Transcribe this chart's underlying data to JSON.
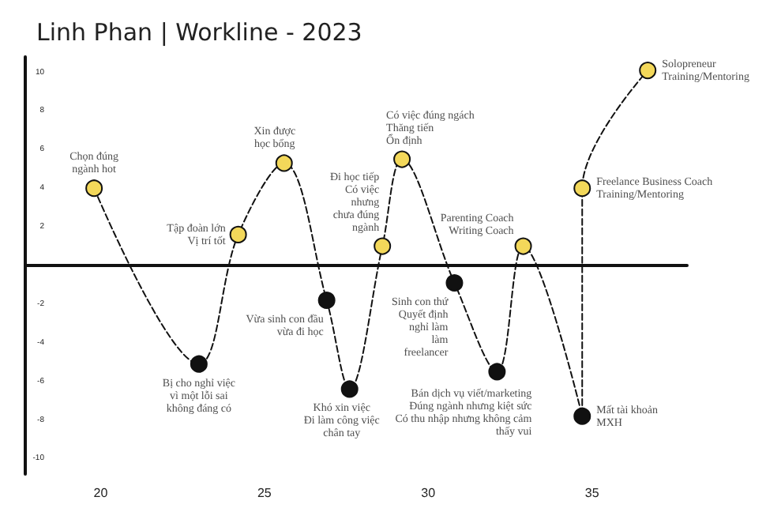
{
  "chart_data": {
    "type": "line",
    "title": "Linh Phan | Workline - 2023",
    "x": [
      19.8,
      23.0,
      24.2,
      25.6,
      26.9,
      27.6,
      28.6,
      29.2,
      30.8,
      32.1,
      32.9,
      34.7,
      34.7,
      36.7
    ],
    "values": [
      4,
      -5.1,
      1.6,
      5.3,
      -1.8,
      -6.4,
      1.0,
      5.5,
      -0.9,
      -5.5,
      1.0,
      -7.8,
      4.0,
      10.1
    ],
    "color": "#111111",
    "colors": [
      "#f3d85a",
      "#111111",
      "#f3d85a",
      "#f3d85a",
      "#111111",
      "#111111",
      "#f3d85a",
      "#f3d85a",
      "#111111",
      "#111111",
      "#f3d85a",
      "#111111",
      "#f3d85a",
      "#f3d85a"
    ],
    "xlim": [
      17.7,
      37.9
    ],
    "xticks": [
      20,
      25,
      30,
      35
    ],
    "ylim": [
      -10.8,
      10.8
    ],
    "yticks": [
      -10,
      -8,
      -6,
      -4,
      -2,
      2,
      4,
      6,
      8,
      10
    ],
    "marker": "circle",
    "line_style": "dashed",
    "grid": false,
    "annotations": [
      {
        "text": "Chọn đúng\nngành hot",
        "x": 19.8,
        "y": 4
      },
      {
        "text": "Bị cho nghỉ việc\nvì một lỗi sai\nkhông đáng có",
        "x": 23.0,
        "y": -5.1
      },
      {
        "text": "Tập đoàn lớn\nVị trí tốt",
        "x": 24.2,
        "y": 1.6
      },
      {
        "text": "Xin được\nhọc bổng",
        "x": 25.6,
        "y": 5.3
      },
      {
        "text": "Vừa sinh con đầu\nvừa đi học",
        "x": 26.9,
        "y": -1.8
      },
      {
        "text": "Khó xin việc\nĐi làm công việc\nchân tay",
        "x": 27.6,
        "y": -6.4
      },
      {
        "text": "Đi học tiếp\nCó việc\nnhưng\nchưa đúng\nngành",
        "x": 28.6,
        "y": 1.0
      },
      {
        "text": "Có việc đúng ngách\nThăng tiến\nỔn định",
        "x": 29.2,
        "y": 5.5
      },
      {
        "text": "Sinh con thứ\nQuyết định\nnghỉ làm\nlàm\nfreelancer",
        "x": 30.8,
        "y": -0.9
      },
      {
        "text": "Bán dịch vụ viết/marketing\nĐúng ngành nhưng kiệt sức\nCó thu nhập nhưng không cảm\nthấy vui",
        "x": 32.1,
        "y": -5.5
      },
      {
        "text": "Parenting Coach\nWriting Coach",
        "x": 32.9,
        "y": 1.0
      },
      {
        "text": "Mất tài khoản\nMXH",
        "x": 34.7,
        "y": -7.8
      },
      {
        "text": "Freelance Business Coach\nTraining/Mentoring",
        "x": 34.7,
        "y": 4.0
      },
      {
        "text": "Solopreneur\nTraining/Mentoring",
        "x": 36.7,
        "y": 10.1
      }
    ]
  }
}
